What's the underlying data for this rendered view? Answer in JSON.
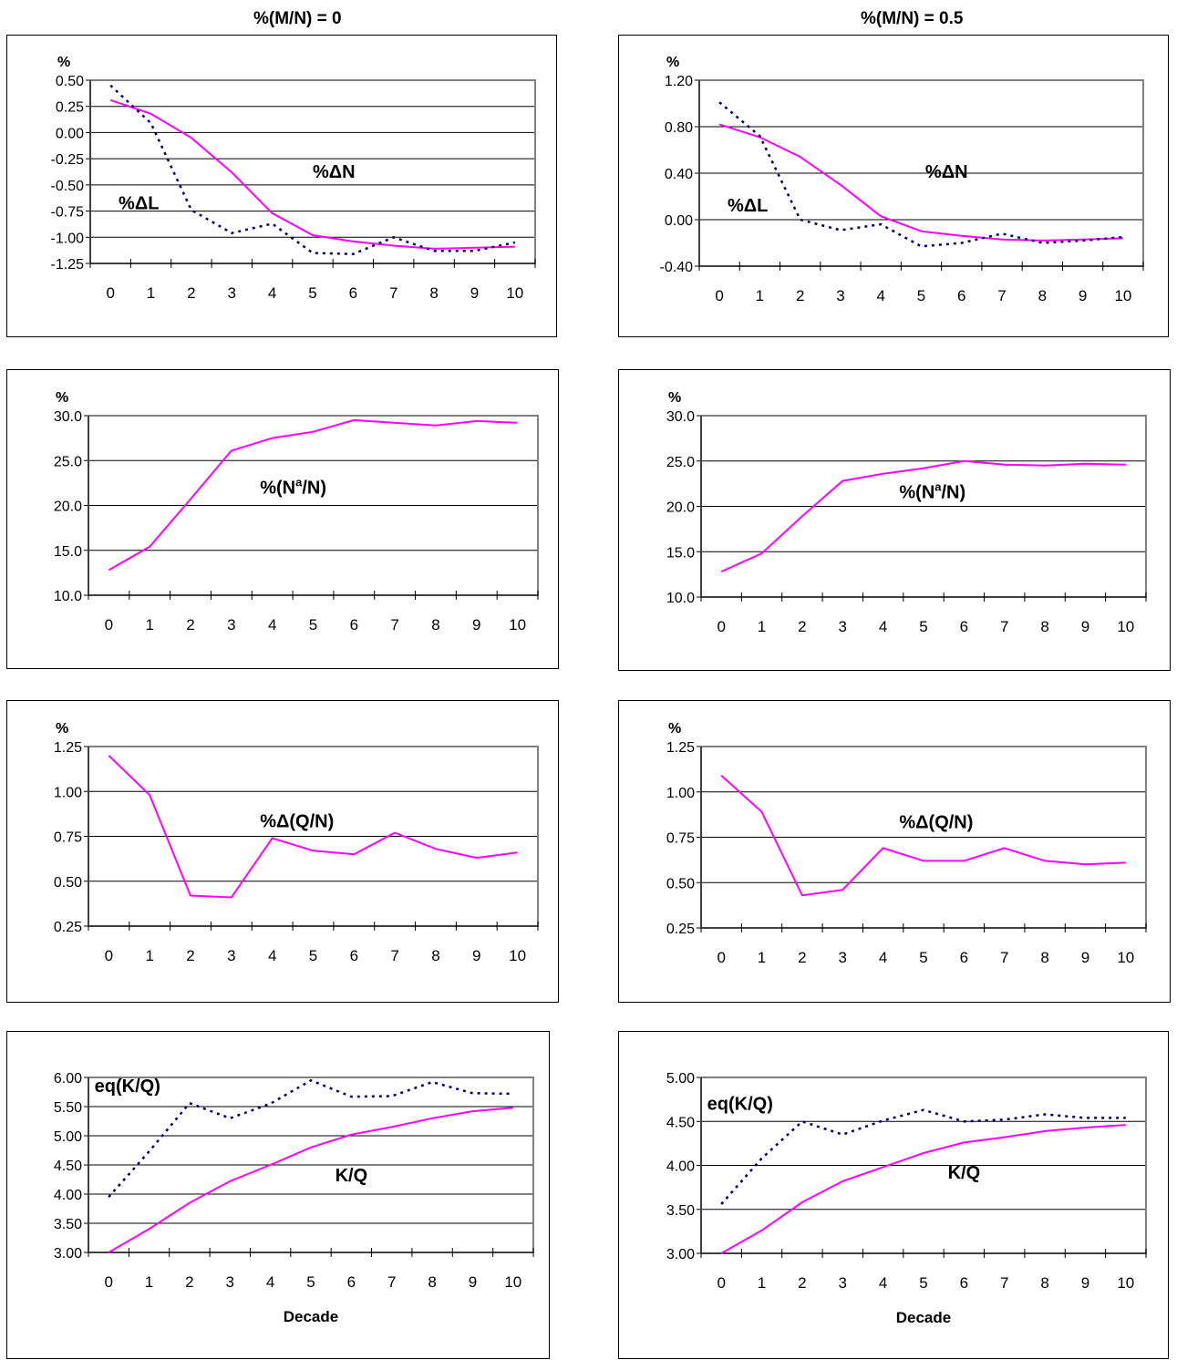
{
  "columns": [
    {
      "title": "%(M/N) = 0"
    },
    {
      "title": "%(M/N) = 0.5"
    }
  ],
  "colors": {
    "solid": "#ff00ff",
    "dotted": "#000066",
    "grid": "#000000",
    "plot_border": "#808080"
  },
  "chart_data": [
    {
      "type": "line",
      "ylabel": "%",
      "xlabel": "",
      "categories": [
        "0",
        "1",
        "2",
        "3",
        "4",
        "5",
        "6",
        "7",
        "8",
        "9",
        "10"
      ],
      "ylim": [
        -1.25,
        0.5
      ],
      "yticks": [
        "0.50",
        "0.25",
        "0.00",
        "-0.25",
        "-0.50",
        "-0.75",
        "-1.00",
        "-1.25"
      ],
      "series": [
        {
          "values": [
            0.31,
            0.18,
            -0.05,
            -0.38,
            -0.77,
            -0.98,
            -1.04,
            -1.08,
            -1.11,
            -1.1,
            -1.09
          ],
          "style": "solid"
        },
        {
          "values": [
            0.45,
            0.09,
            -0.74,
            -0.96,
            -0.87,
            -1.15,
            -1.16,
            -1.0,
            -1.13,
            -1.13,
            -1.05
          ],
          "style": "dotted"
        }
      ],
      "annotations": [
        {
          "text": "%ΔN",
          "x": 5.0,
          "y": -0.43
        },
        {
          "text": "%ΔL",
          "x": 0.2,
          "y": -0.73
        }
      ]
    },
    {
      "type": "line",
      "ylabel": "%",
      "xlabel": "",
      "categories": [
        "0",
        "1",
        "2",
        "3",
        "4",
        "5",
        "6",
        "7",
        "8",
        "9",
        "10"
      ],
      "ylim": [
        -0.4,
        1.2
      ],
      "yticks": [
        "1.20",
        "0.80",
        "0.40",
        "0.00",
        "-0.40"
      ],
      "series": [
        {
          "values": [
            0.82,
            0.71,
            0.54,
            0.3,
            0.03,
            -0.1,
            -0.14,
            -0.17,
            -0.18,
            -0.17,
            -0.16
          ],
          "style": "solid"
        },
        {
          "values": [
            1.01,
            0.72,
            0.0,
            -0.09,
            -0.04,
            -0.23,
            -0.2,
            -0.12,
            -0.2,
            -0.18,
            -0.15
          ],
          "style": "dotted"
        }
      ],
      "annotations": [
        {
          "text": "%ΔN",
          "x": 5.1,
          "y": 0.36
        },
        {
          "text": "%ΔL",
          "x": 0.2,
          "y": 0.07
        }
      ]
    },
    {
      "type": "line",
      "ylabel": "%",
      "xlabel": "",
      "categories": [
        "0",
        "1",
        "2",
        "3",
        "4",
        "5",
        "6",
        "7",
        "8",
        "9",
        "10"
      ],
      "ylim": [
        10,
        30
      ],
      "yticks": [
        "30.0",
        "25.0",
        "20.0",
        "15.0",
        "10.0"
      ],
      "series": [
        {
          "values": [
            12.8,
            15.4,
            20.7,
            26.1,
            27.5,
            28.2,
            29.5,
            29.2,
            28.9,
            29.4,
            29.2
          ],
          "style": "solid"
        }
      ],
      "annotations": [
        {
          "text": "%(N",
          "sup": "a",
          "tail": "/N)",
          "x": 3.7,
          "y": 21.3
        }
      ]
    },
    {
      "type": "line",
      "ylabel": "%",
      "xlabel": "",
      "categories": [
        "0",
        "1",
        "2",
        "3",
        "4",
        "5",
        "6",
        "7",
        "8",
        "9",
        "10"
      ],
      "ylim": [
        10,
        30
      ],
      "yticks": [
        "30.0",
        "25.0",
        "20.0",
        "15.0",
        "10.0"
      ],
      "series": [
        {
          "values": [
            12.8,
            14.8,
            18.9,
            22.8,
            23.6,
            24.2,
            25.0,
            24.6,
            24.5,
            24.7,
            24.6
          ],
          "style": "solid"
        }
      ],
      "annotations": [
        {
          "text": "%(N",
          "sup": "a",
          "tail": "/N)",
          "x": 4.4,
          "y": 20.9
        }
      ]
    },
    {
      "type": "line",
      "ylabel": "%",
      "xlabel": "",
      "categories": [
        "0",
        "1",
        "2",
        "3",
        "4",
        "5",
        "6",
        "7",
        "8",
        "9",
        "10"
      ],
      "ylim": [
        0.25,
        1.25
      ],
      "yticks": [
        "1.25",
        "1.00",
        "0.75",
        "0.50",
        "0.25"
      ],
      "series": [
        {
          "values": [
            1.2,
            0.98,
            0.42,
            0.41,
            0.74,
            0.67,
            0.65,
            0.77,
            0.68,
            0.63,
            0.66
          ],
          "style": "solid"
        }
      ],
      "annotations": [
        {
          "text": "%Δ(Q/N)",
          "x": 3.7,
          "y": 0.8
        }
      ]
    },
    {
      "type": "line",
      "ylabel": "%",
      "xlabel": "",
      "categories": [
        "0",
        "1",
        "2",
        "3",
        "4",
        "5",
        "6",
        "7",
        "8",
        "9",
        "10"
      ],
      "ylim": [
        0.25,
        1.25
      ],
      "yticks": [
        "1.25",
        "1.00",
        "0.75",
        "0.50",
        "0.25"
      ],
      "series": [
        {
          "values": [
            1.09,
            0.89,
            0.43,
            0.46,
            0.69,
            0.62,
            0.62,
            0.69,
            0.62,
            0.6,
            0.61
          ],
          "style": "solid"
        }
      ],
      "annotations": [
        {
          "text": "%Δ(Q/N)",
          "x": 4.4,
          "y": 0.8
        }
      ]
    },
    {
      "type": "line",
      "ylabel": "",
      "xlabel": "Decade",
      "categories": [
        "0",
        "1",
        "2",
        "3",
        "4",
        "5",
        "6",
        "7",
        "8",
        "9",
        "10"
      ],
      "ylim": [
        3.0,
        6.0
      ],
      "yticks": [
        "6.00",
        "5.50",
        "5.00",
        "4.50",
        "4.00",
        "3.50",
        "3.00"
      ],
      "series": [
        {
          "values": [
            3.0,
            3.4,
            3.85,
            4.22,
            4.5,
            4.8,
            5.02,
            5.15,
            5.3,
            5.42,
            5.48
          ],
          "style": "solid"
        },
        {
          "values": [
            3.95,
            4.73,
            5.56,
            5.3,
            5.55,
            5.95,
            5.67,
            5.68,
            5.92,
            5.73,
            5.72
          ],
          "style": "dotted"
        }
      ],
      "annotations": [
        {
          "text": "K/Q",
          "x": 5.6,
          "y": 4.22
        },
        {
          "text": "eq(K/Q)",
          "x": -0.35,
          "y": 5.75
        }
      ]
    },
    {
      "type": "line",
      "ylabel": "",
      "xlabel": "Decade",
      "categories": [
        "0",
        "1",
        "2",
        "3",
        "4",
        "5",
        "6",
        "7",
        "8",
        "9",
        "10"
      ],
      "ylim": [
        3.0,
        5.0
      ],
      "yticks": [
        "5.00",
        "4.50",
        "4.00",
        "3.50",
        "3.00"
      ],
      "series": [
        {
          "values": [
            3.0,
            3.26,
            3.58,
            3.82,
            3.98,
            4.14,
            4.26,
            4.32,
            4.39,
            4.43,
            4.46
          ],
          "style": "solid"
        },
        {
          "values": [
            3.56,
            4.08,
            4.5,
            4.35,
            4.51,
            4.63,
            4.5,
            4.52,
            4.58,
            4.54,
            4.54
          ],
          "style": "dotted"
        }
      ],
      "annotations": [
        {
          "text": "K/Q",
          "x": 5.6,
          "y": 3.85
        },
        {
          "text": "eq(K/Q)",
          "x": -0.35,
          "y": 4.63
        }
      ]
    }
  ]
}
